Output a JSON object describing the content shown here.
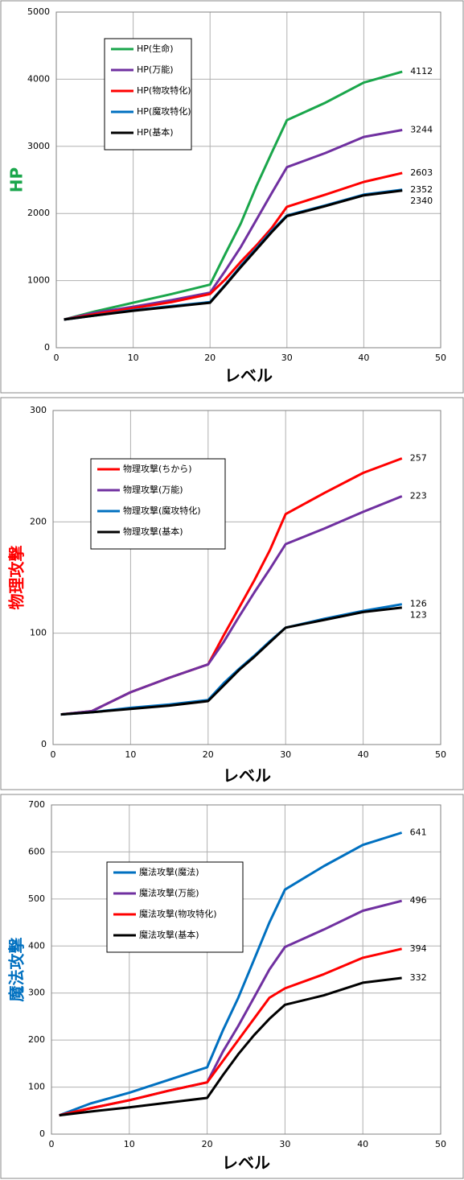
{
  "chart_data": [
    {
      "type": "line",
      "ylabel": "HP",
      "ylabel_color": "#1aa64b",
      "xlabel": "レベル",
      "x": [
        1,
        5,
        10,
        15,
        20,
        22,
        24,
        26,
        28,
        30,
        35,
        40,
        45
      ],
      "xlim": [
        0,
        50
      ],
      "xticks": [
        0,
        10,
        20,
        30,
        40,
        50
      ],
      "ylim": [
        0,
        5000
      ],
      "yticks": [
        0,
        1000,
        2000,
        3000,
        4000,
        5000
      ],
      "grid": true,
      "legend": "upper left",
      "series": [
        {
          "name": "HP(生命)",
          "color": "#1aa64b",
          "values": [
            420,
            540,
            670,
            800,
            940,
            1400,
            1850,
            2400,
            2900,
            3390,
            3650,
            3950,
            4112
          ]
        },
        {
          "name": "HP(万能)",
          "color": "#7030a0",
          "values": [
            420,
            520,
            610,
            710,
            820,
            1150,
            1500,
            1900,
            2300,
            2690,
            2900,
            3140,
            3244
          ]
        },
        {
          "name": "HP(物攻特化)",
          "color": "#ff0000",
          "values": [
            420,
            500,
            590,
            680,
            800,
            1020,
            1280,
            1520,
            1780,
            2100,
            2280,
            2470,
            2603
          ]
        },
        {
          "name": "HP(魔攻特化)",
          "color": "#0070c0",
          "values": [
            420,
            480,
            560,
            620,
            680,
            940,
            1220,
            1480,
            1740,
            1970,
            2120,
            2280,
            2352
          ]
        },
        {
          "name": "HP(基本)",
          "color": "#000000",
          "values": [
            420,
            480,
            550,
            610,
            670,
            930,
            1200,
            1460,
            1720,
            1960,
            2110,
            2270,
            2340
          ]
        }
      ]
    },
    {
      "type": "line",
      "ylabel": "物理攻撃",
      "ylabel_color": "#ff0000",
      "xlabel": "レベル",
      "x": [
        1,
        5,
        10,
        15,
        20,
        22,
        24,
        26,
        28,
        30,
        35,
        40,
        45
      ],
      "xlim": [
        0,
        50
      ],
      "xticks": [
        0,
        10,
        20,
        30,
        40,
        50
      ],
      "ylim": [
        0,
        300
      ],
      "yticks": [
        0,
        100,
        200,
        300
      ],
      "grid": true,
      "legend": "upper left",
      "series": [
        {
          "name": "物理攻撃(ちから)",
          "color": "#ff0000",
          "values": [
            27,
            30,
            47,
            60,
            72,
            98,
            123,
            148,
            175,
            207,
            226,
            244,
            257
          ]
        },
        {
          "name": "物理攻撃(万能)",
          "color": "#7030a0",
          "values": [
            27,
            30,
            47,
            60,
            72,
            92,
            115,
            137,
            158,
            180,
            194,
            209,
            223
          ]
        },
        {
          "name": "物理攻撃(魔攻特化)",
          "color": "#0070c0",
          "values": [
            27,
            29,
            33,
            36,
            40,
            55,
            68,
            80,
            93,
            105,
            113,
            120,
            126
          ]
        },
        {
          "name": "物理攻撃(基本)",
          "color": "#000000",
          "values": [
            27,
            29,
            32,
            35,
            39,
            53,
            67,
            79,
            92,
            105,
            112,
            119,
            123
          ]
        }
      ]
    },
    {
      "type": "line",
      "ylabel": "魔法攻撃",
      "ylabel_color": "#0070c0",
      "xlabel": "レベル",
      "x": [
        1,
        5,
        10,
        15,
        20,
        22,
        24,
        26,
        28,
        30,
        35,
        40,
        45
      ],
      "xlim": [
        0,
        50
      ],
      "xticks": [
        0,
        10,
        20,
        30,
        40,
        50
      ],
      "ylim": [
        0,
        700
      ],
      "yticks": [
        0,
        100,
        200,
        300,
        400,
        500,
        600,
        700
      ],
      "grid": true,
      "legend": "upper left",
      "series": [
        {
          "name": "魔法攻撃(魔法)",
          "color": "#0070c0",
          "values": [
            40,
            65,
            88,
            115,
            142,
            220,
            290,
            370,
            450,
            520,
            570,
            615,
            641
          ]
        },
        {
          "name": "魔法攻撃(万能)",
          "color": "#7030a0",
          "values": [
            40,
            55,
            72,
            92,
            110,
            175,
            230,
            290,
            350,
            398,
            435,
            475,
            496
          ]
        },
        {
          "name": "魔法攻撃(物攻特化)",
          "color": "#ff0000",
          "values": [
            40,
            55,
            72,
            92,
            110,
            155,
            200,
            245,
            290,
            310,
            340,
            375,
            394
          ]
        },
        {
          "name": "魔法攻撃(基本)",
          "color": "#000000",
          "values": [
            40,
            48,
            57,
            67,
            77,
            125,
            170,
            210,
            245,
            275,
            295,
            322,
            332
          ]
        }
      ]
    }
  ]
}
